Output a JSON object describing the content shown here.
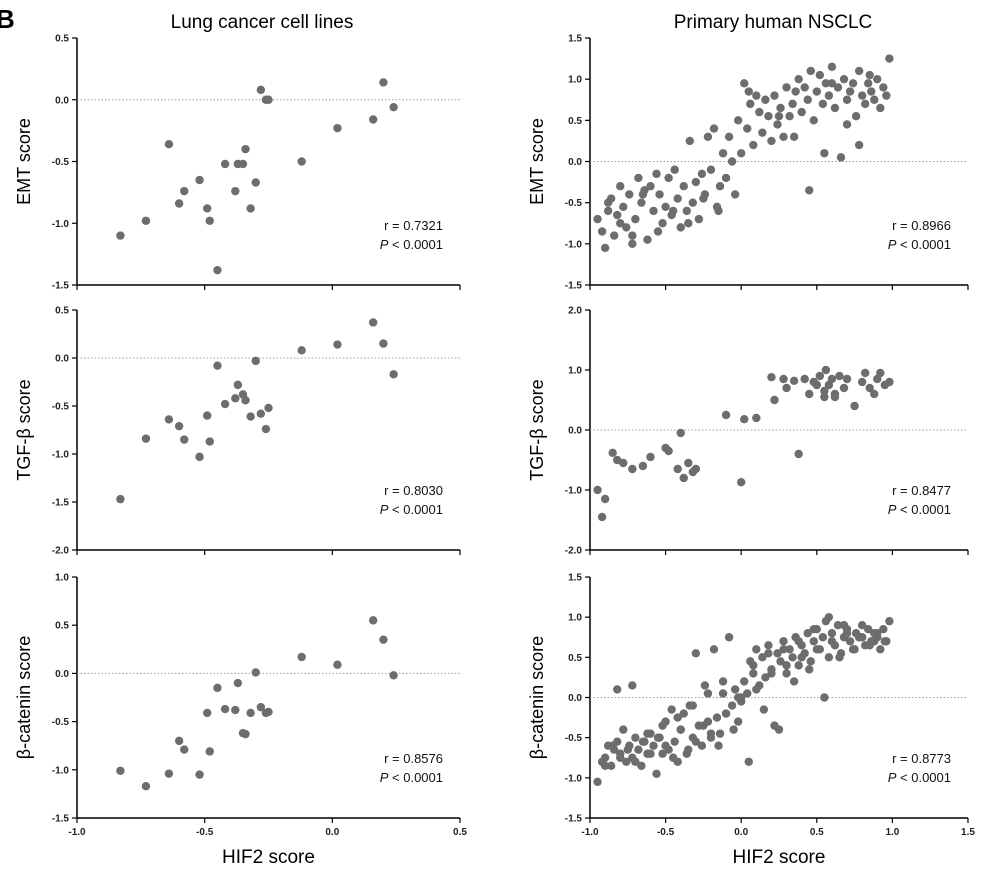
{
  "panel_label": "B",
  "column_titles": [
    "Lung cancer cell lines",
    "Primary human NSCLC"
  ],
  "colors": {
    "point": "#6d6d6d",
    "axis": "#000000",
    "refline": "#9a9a9a"
  },
  "chart_data": [
    {
      "type": "scatter",
      "column": "Lung cancer cell lines",
      "ylabel": "EMT score",
      "xlabel": "",
      "xlim": [
        -1.0,
        0.5
      ],
      "ylim": [
        -1.5,
        0.5
      ],
      "yticks": [
        "0.5",
        "0.0",
        "-0.5",
        "-1.0",
        "-1.5"
      ],
      "xticks": [],
      "refline_y": 0.0,
      "stat_r": "r = 0.7321",
      "stat_p": "< 0.0001",
      "x": [
        -0.83,
        -0.73,
        -0.64,
        -0.6,
        -0.58,
        -0.52,
        -0.49,
        -0.48,
        -0.45,
        -0.42,
        -0.38,
        -0.37,
        -0.35,
        -0.34,
        -0.32,
        -0.3,
        -0.28,
        -0.26,
        -0.25,
        -0.12,
        0.02,
        0.16,
        0.2,
        0.24
      ],
      "y": [
        -1.1,
        -0.98,
        -0.36,
        -0.84,
        -0.74,
        -0.65,
        -0.88,
        -0.98,
        -1.38,
        -0.52,
        -0.74,
        -0.52,
        -0.52,
        -0.4,
        -0.88,
        -0.67,
        0.08,
        0.0,
        0.0,
        -0.5,
        -0.23,
        -0.16,
        0.14,
        -0.06
      ]
    },
    {
      "type": "scatter",
      "column": "Primary human NSCLC",
      "ylabel": "EMT score",
      "xlabel": "",
      "xlim": [
        -1.0,
        1.5
      ],
      "ylim": [
        -1.5,
        1.5
      ],
      "yticks": [
        "1.5",
        "1.0",
        "0.5",
        "0.0",
        "-0.5",
        "-1.0",
        "-1.5"
      ],
      "xticks": [],
      "refline_y": 0.0,
      "stat_r": "r = 0.8966",
      "stat_p": "< 0.0001",
      "x": [
        -0.95,
        -0.92,
        -0.9,
        -0.88,
        -0.86,
        -0.84,
        -0.82,
        -0.8,
        -0.78,
        -0.76,
        -0.74,
        -0.72,
        -0.7,
        -0.68,
        -0.66,
        -0.64,
        -0.62,
        -0.6,
        -0.58,
        -0.56,
        -0.54,
        -0.52,
        -0.5,
        -0.48,
        -0.46,
        -0.44,
        -0.42,
        -0.4,
        -0.38,
        -0.36,
        -0.34,
        -0.32,
        -0.3,
        -0.28,
        -0.26,
        -0.24,
        -0.22,
        -0.2,
        -0.18,
        -0.16,
        -0.14,
        -0.12,
        -0.1,
        -0.08,
        -0.06,
        -0.04,
        -0.02,
        0.0,
        0.02,
        0.04,
        0.06,
        0.08,
        0.1,
        0.12,
        0.14,
        0.16,
        0.18,
        0.2,
        0.22,
        0.24,
        0.26,
        0.28,
        0.3,
        0.32,
        0.34,
        0.36,
        0.38,
        0.4,
        0.42,
        0.44,
        0.46,
        0.48,
        0.5,
        0.52,
        0.54,
        0.56,
        0.58,
        0.6,
        0.62,
        0.64,
        0.66,
        0.68,
        0.7,
        0.72,
        0.74,
        0.76,
        0.78,
        0.8,
        0.82,
        0.84,
        0.86,
        0.88,
        0.9,
        0.92,
        0.94,
        0.96,
        0.98,
        -0.88,
        -0.8,
        -0.72,
        -0.65,
        -0.55,
        -0.45,
        -0.35,
        -0.25,
        -0.15,
        0.05,
        0.25,
        0.35,
        0.45,
        0.55,
        0.6,
        0.7,
        0.78,
        0.85
      ],
      "y": [
        -0.7,
        -0.85,
        -1.05,
        -0.6,
        -0.45,
        -0.9,
        -0.65,
        -0.3,
        -0.55,
        -0.8,
        -0.4,
        -1.0,
        -0.7,
        -0.2,
        -0.5,
        -0.35,
        -0.95,
        -0.3,
        -0.6,
        -0.15,
        -0.4,
        -0.75,
        -0.55,
        -0.2,
        -0.65,
        -0.1,
        -0.45,
        -0.8,
        -0.3,
        -0.6,
        0.25,
        -0.5,
        -0.25,
        -0.7,
        -0.15,
        -0.4,
        0.3,
        -0.1,
        0.4,
        -0.55,
        -0.3,
        0.1,
        -0.2,
        0.3,
        0.0,
        -0.4,
        0.5,
        0.1,
        0.95,
        0.4,
        0.7,
        0.2,
        0.8,
        0.6,
        0.35,
        0.75,
        0.55,
        0.25,
        0.8,
        0.45,
        0.65,
        0.3,
        0.9,
        0.55,
        0.7,
        0.85,
        1.0,
        0.6,
        0.9,
        0.75,
        1.1,
        0.5,
        0.85,
        1.05,
        0.7,
        0.95,
        0.8,
        1.15,
        0.65,
        0.9,
        0.05,
        1.0,
        0.75,
        0.85,
        0.95,
        0.55,
        1.1,
        0.8,
        0.7,
        0.95,
        0.85,
        0.75,
        1.0,
        0.65,
        0.9,
        0.8,
        1.25,
        -0.5,
        -0.75,
        -0.9,
        -0.4,
        -0.85,
        -0.6,
        -0.75,
        -0.45,
        -0.6,
        0.85,
        0.55,
        0.3,
        -0.35,
        0.1,
        0.95,
        0.45,
        0.2,
        1.05
      ],
      "note": ""
    },
    {
      "type": "scatter",
      "column": "Lung cancer cell lines",
      "ylabel": "TGF-β score",
      "xlabel": "",
      "xlim": [
        -1.0,
        0.5
      ],
      "ylim": [
        -2.0,
        0.5
      ],
      "yticks": [
        "0.5",
        "0.0",
        "-0.5",
        "-1.0",
        "-1.5",
        "-2.0"
      ],
      "xticks": [],
      "refline_y": 0.0,
      "stat_r": "r = 0.8030",
      "stat_p": "< 0.0001",
      "x": [
        -0.83,
        -0.73,
        -0.64,
        -0.6,
        -0.58,
        -0.52,
        -0.49,
        -0.48,
        -0.45,
        -0.42,
        -0.38,
        -0.37,
        -0.35,
        -0.34,
        -0.32,
        -0.3,
        -0.28,
        -0.26,
        -0.25,
        -0.12,
        0.02,
        0.16,
        0.2,
        0.24
      ],
      "y": [
        -1.47,
        -0.84,
        -0.64,
        -0.71,
        -0.85,
        -1.03,
        -0.6,
        -0.87,
        -0.08,
        -0.48,
        -0.42,
        -0.28,
        -0.38,
        -0.44,
        -0.61,
        -0.03,
        -0.58,
        -0.74,
        -0.52,
        0.08,
        0.14,
        0.37,
        0.15,
        -0.17
      ]
    },
    {
      "type": "scatter",
      "column": "Primary human NSCLC",
      "ylabel": "TGF-β score",
      "xlabel": "",
      "xlim": [
        -1.0,
        1.5
      ],
      "ylim": [
        -2.0,
        2.0
      ],
      "yticks": [
        "2.0",
        "1.0",
        "0.0",
        "-1.0",
        "-2.0"
      ],
      "xticks": [],
      "refline_y": 0.0,
      "stat_r": "r = 0.8477",
      "stat_p": "< 0.0001",
      "x": [
        -0.95,
        -0.92,
        -0.9,
        -0.85,
        -0.82,
        -0.78,
        -0.72,
        -0.65,
        -0.6,
        -0.5,
        -0.48,
        -0.42,
        -0.4,
        -0.38,
        -0.35,
        -0.32,
        -0.3,
        -0.1,
        0.0,
        0.02,
        0.1,
        0.2,
        0.22,
        0.28,
        0.3,
        0.35,
        0.38,
        0.42,
        0.45,
        0.48,
        0.5,
        0.52,
        0.55,
        0.56,
        0.58,
        0.6,
        0.62,
        0.65,
        0.68,
        0.7,
        0.75,
        0.8,
        0.82,
        0.85,
        0.88,
        0.9,
        0.92,
        0.95,
        0.98,
        0.55,
        0.62
      ],
      "y": [
        -1.0,
        -1.45,
        -1.15,
        -0.38,
        -0.5,
        -0.55,
        -0.65,
        -0.6,
        -0.45,
        -0.3,
        -0.35,
        -0.65,
        -0.05,
        -0.8,
        -0.55,
        -0.7,
        -0.65,
        0.25,
        -0.87,
        0.18,
        0.2,
        0.88,
        0.5,
        0.85,
        0.7,
        0.82,
        -0.4,
        0.85,
        0.6,
        0.8,
        0.75,
        0.9,
        0.55,
        1.0,
        0.75,
        0.85,
        0.6,
        0.9,
        0.7,
        0.85,
        0.4,
        0.8,
        0.95,
        0.7,
        0.6,
        0.85,
        0.95,
        0.75,
        0.8,
        0.65,
        0.55
      ]
    },
    {
      "type": "scatter",
      "column": "Lung cancer cell lines",
      "ylabel": "β-catenin score",
      "xlabel": "HIF2 score",
      "xlim": [
        -1.0,
        0.5
      ],
      "ylim": [
        -1.5,
        1.0
      ],
      "yticks": [
        "1.0",
        "0.5",
        "0.0",
        "-0.5",
        "-1.0",
        "-1.5"
      ],
      "xticks": [
        "-1.0",
        "-0.5",
        "0.0",
        "0.5"
      ],
      "refline_y": 0.0,
      "stat_r": "r = 0.8576",
      "stat_p": "< 0.0001",
      "x": [
        -0.83,
        -0.73,
        -0.64,
        -0.6,
        -0.58,
        -0.52,
        -0.49,
        -0.48,
        -0.45,
        -0.42,
        -0.38,
        -0.37,
        -0.35,
        -0.34,
        -0.32,
        -0.3,
        -0.28,
        -0.26,
        -0.25,
        -0.12,
        0.02,
        0.16,
        0.2,
        0.24
      ],
      "y": [
        -1.01,
        -1.17,
        -1.04,
        -0.7,
        -0.79,
        -1.05,
        -0.41,
        -0.81,
        -0.15,
        -0.37,
        -0.38,
        -0.1,
        -0.62,
        -0.63,
        -0.41,
        0.01,
        -0.35,
        -0.41,
        -0.4,
        0.17,
        0.09,
        0.55,
        0.35,
        -0.02
      ]
    },
    {
      "type": "scatter",
      "column": "Primary human NSCLC",
      "ylabel": "β-catenin score",
      "xlabel": "HIF2 score",
      "xlim": [
        -1.0,
        1.5
      ],
      "ylim": [
        -1.5,
        1.5
      ],
      "yticks": [
        "1.5",
        "1.0",
        "0.5",
        "0.0",
        "-0.5",
        "-1.0",
        "-1.5"
      ],
      "xticks": [
        "-1.0",
        "-0.5",
        "0.0",
        "0.5",
        "1.0",
        "1.5"
      ],
      "refline_y": 0.0,
      "stat_r": "r = 0.8773",
      "stat_p": "< 0.0001",
      "x": [
        -0.95,
        -0.92,
        -0.9,
        -0.88,
        -0.86,
        -0.84,
        -0.82,
        -0.8,
        -0.78,
        -0.76,
        -0.74,
        -0.72,
        -0.7,
        -0.68,
        -0.66,
        -0.64,
        -0.62,
        -0.6,
        -0.58,
        -0.56,
        -0.54,
        -0.52,
        -0.5,
        -0.48,
        -0.46,
        -0.44,
        -0.42,
        -0.4,
        -0.38,
        -0.36,
        -0.34,
        -0.32,
        -0.3,
        -0.28,
        -0.26,
        -0.24,
        -0.22,
        -0.2,
        -0.18,
        -0.16,
        -0.14,
        -0.12,
        -0.1,
        -0.08,
        -0.06,
        -0.04,
        -0.02,
        0.0,
        0.02,
        0.04,
        0.06,
        0.08,
        0.1,
        0.12,
        0.14,
        0.16,
        0.18,
        0.2,
        0.22,
        0.24,
        0.26,
        0.28,
        0.3,
        0.32,
        0.34,
        0.36,
        0.38,
        0.4,
        0.42,
        0.44,
        0.46,
        0.48,
        0.5,
        0.52,
        0.54,
        0.56,
        0.58,
        0.6,
        0.62,
        0.64,
        0.66,
        0.68,
        0.7,
        0.72,
        0.74,
        0.76,
        0.78,
        0.8,
        0.82,
        0.84,
        0.86,
        0.88,
        0.9,
        0.92,
        0.94,
        0.96,
        0.98,
        -0.9,
        -0.85,
        -0.8,
        -0.75,
        -0.7,
        -0.65,
        -0.6,
        -0.55,
        -0.5,
        -0.45,
        -0.4,
        -0.35,
        -0.3,
        -0.25,
        -0.2,
        -0.15,
        -0.1,
        -0.05,
        0.0,
        0.05,
        0.1,
        0.15,
        0.2,
        0.25,
        0.3,
        0.35,
        0.4,
        0.45,
        0.5,
        0.55,
        0.6,
        0.65,
        0.7,
        0.75,
        0.8,
        0.85,
        0.9,
        0.95,
        -0.82,
        -0.72,
        -0.62,
        -0.52,
        -0.42,
        -0.32,
        -0.22,
        -0.12,
        -0.02,
        0.08,
        0.18,
        0.28,
        0.38,
        0.48,
        0.58,
        0.68,
        0.78,
        0.88
      ],
      "y": [
        -1.05,
        -0.8,
        -0.75,
        -0.6,
        -0.85,
        -0.65,
        -0.55,
        -0.7,
        -0.4,
        -0.8,
        -0.6,
        -0.75,
        -0.5,
        -0.65,
        -0.85,
        -0.55,
        -0.7,
        -0.45,
        -0.6,
        -0.95,
        -0.5,
        -0.7,
        -0.3,
        -0.65,
        -0.15,
        -0.55,
        -0.8,
        -0.4,
        -0.2,
        -0.7,
        -0.1,
        -0.5,
        0.55,
        -0.35,
        -0.6,
        0.15,
        -0.3,
        -0.5,
        0.6,
        -0.25,
        -0.45,
        0.05,
        -0.2,
        0.75,
        -0.1,
        0.1,
        -0.3,
        0.0,
        0.2,
        0.05,
        0.45,
        0.3,
        0.6,
        0.15,
        0.5,
        0.25,
        0.65,
        0.35,
        -0.35,
        0.55,
        0.45,
        0.7,
        0.3,
        0.6,
        0.5,
        0.75,
        0.4,
        0.65,
        0.55,
        0.8,
        0.45,
        0.7,
        0.85,
        0.6,
        0.75,
        0.95,
        0.5,
        0.8,
        0.65,
        0.9,
        0.55,
        0.75,
        0.85,
        0.7,
        0.6,
        0.8,
        0.75,
        0.9,
        0.65,
        0.85,
        0.7,
        0.8,
        0.75,
        0.6,
        0.85,
        0.7,
        0.95,
        -0.85,
        -0.6,
        -0.75,
        -0.65,
        -0.8,
        -0.55,
        -0.7,
        -0.5,
        -0.6,
        -0.75,
        -0.4,
        -0.65,
        -0.55,
        -0.35,
        -0.45,
        -0.6,
        -0.2,
        -0.4,
        -0.05,
        -0.8,
        0.1,
        -0.15,
        0.3,
        -0.4,
        0.4,
        0.2,
        0.5,
        0.35,
        0.6,
        0.0,
        0.7,
        0.5,
        0.8,
        0.6,
        0.75,
        0.65,
        0.8,
        0.7,
        0.1,
        0.15,
        -0.45,
        -0.35,
        -0.25,
        -0.1,
        0.05,
        0.2,
        0.0,
        0.4,
        0.55,
        0.6,
        0.7,
        0.85,
        1.0,
        0.9,
        0.75,
        0.7
      ]
    }
  ]
}
